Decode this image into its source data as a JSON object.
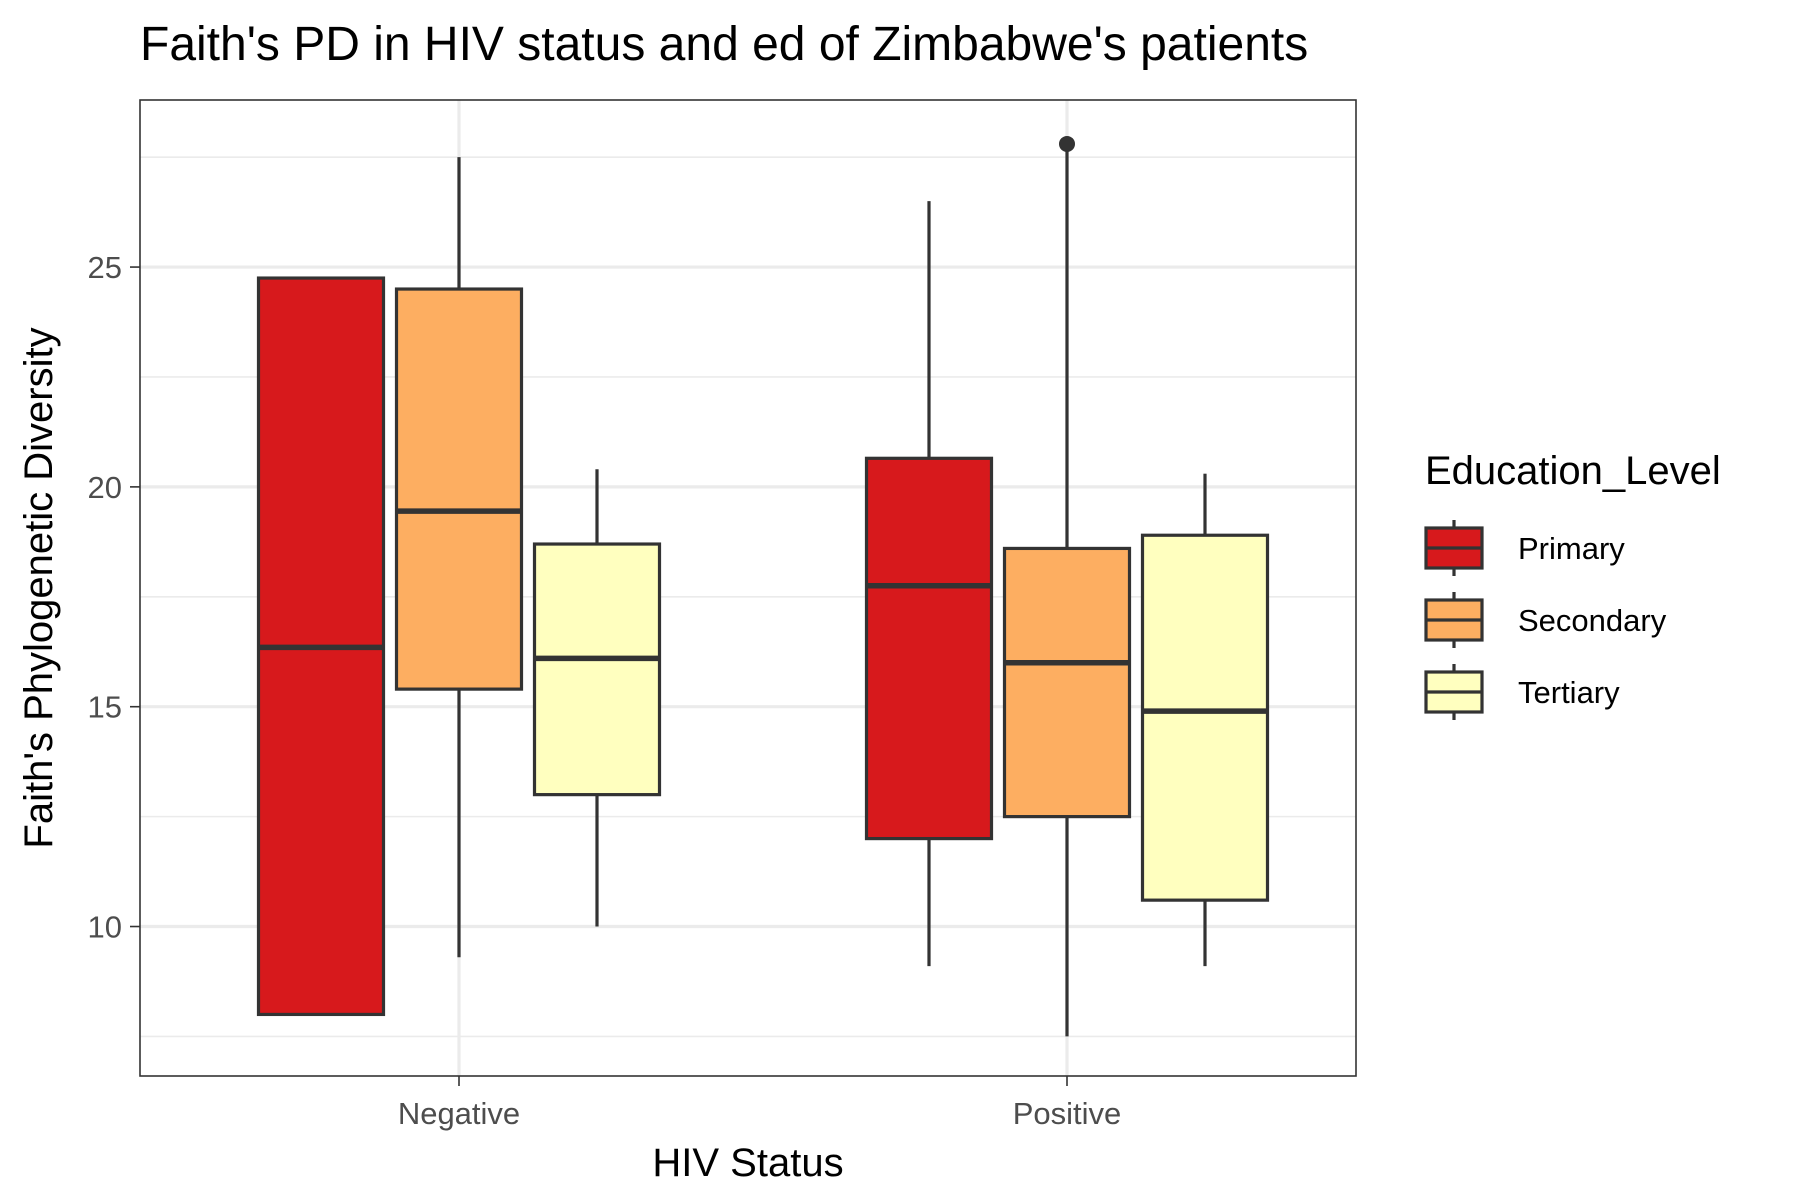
{
  "chart_data": {
    "type": "boxplot",
    "title": "Faith's PD in HIV status and ed of Zimbabwe's patients",
    "xlabel": "HIV Status",
    "ylabel": "Faith's Phylogenetic Diversity",
    "categories": [
      "Negative",
      "Positive"
    ],
    "ylim": [
      6.6,
      28.8
    ],
    "yticks": [
      10,
      15,
      20,
      25
    ],
    "y_minor_ticks": [
      7.5,
      12.5,
      17.5,
      22.5,
      27.5
    ],
    "grid": true,
    "legend": {
      "title": "Education_Level",
      "position": "right",
      "entries": [
        "Primary",
        "Secondary",
        "Tertiary"
      ]
    },
    "series": [
      {
        "name": "Primary",
        "color": "#d7191c",
        "boxes": [
          {
            "category": "Negative",
            "whisker_low": 8.0,
            "q1": 8.0,
            "median": 16.35,
            "q3": 24.75,
            "whisker_high": 24.75,
            "outliers": []
          },
          {
            "category": "Positive",
            "whisker_low": 9.1,
            "q1": 12.0,
            "median": 17.75,
            "q3": 20.65,
            "whisker_high": 26.5,
            "outliers": []
          }
        ]
      },
      {
        "name": "Secondary",
        "color": "#fdae61",
        "boxes": [
          {
            "category": "Negative",
            "whisker_low": 9.3,
            "q1": 15.4,
            "median": 19.45,
            "q3": 24.5,
            "whisker_high": 27.5,
            "outliers": []
          },
          {
            "category": "Positive",
            "whisker_low": 7.5,
            "q1": 12.5,
            "median": 16.0,
            "q3": 18.6,
            "whisker_high": 27.8,
            "outliers": [
              27.8
            ]
          }
        ]
      },
      {
        "name": "Tertiary",
        "color": "#ffffbf",
        "boxes": [
          {
            "category": "Negative",
            "whisker_low": 10.0,
            "q1": 13.0,
            "median": 16.1,
            "q3": 18.7,
            "whisker_high": 20.4,
            "outliers": []
          },
          {
            "category": "Positive",
            "whisker_low": 9.1,
            "q1": 10.6,
            "median": 14.9,
            "q3": 18.9,
            "whisker_high": 20.3,
            "outliers": []
          }
        ]
      }
    ]
  }
}
